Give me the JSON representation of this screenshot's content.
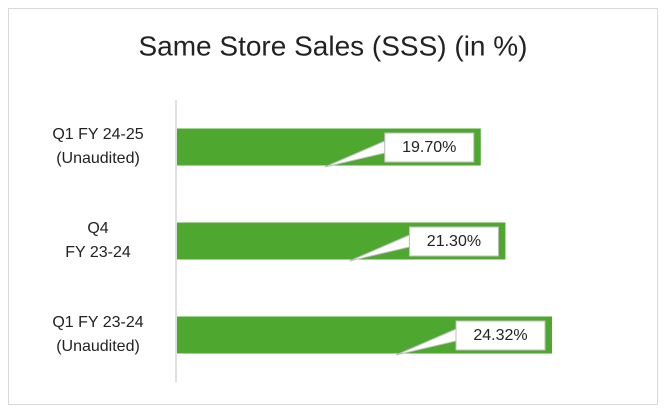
{
  "chart_data": {
    "type": "bar",
    "orientation": "horizontal",
    "title": "Same Store Sales (SSS) (in %)",
    "categories": [
      [
        "Q1 FY 24-25",
        "(Unaudited)"
      ],
      [
        "Q4",
        "FY 23-24"
      ],
      [
        "Q1 FY 23-24",
        "(Unaudited)"
      ]
    ],
    "values": [
      19.7,
      21.3,
      24.32
    ],
    "value_labels": [
      "19.70%",
      "21.30%",
      "24.32%"
    ],
    "color": "#4ea72e"
  }
}
